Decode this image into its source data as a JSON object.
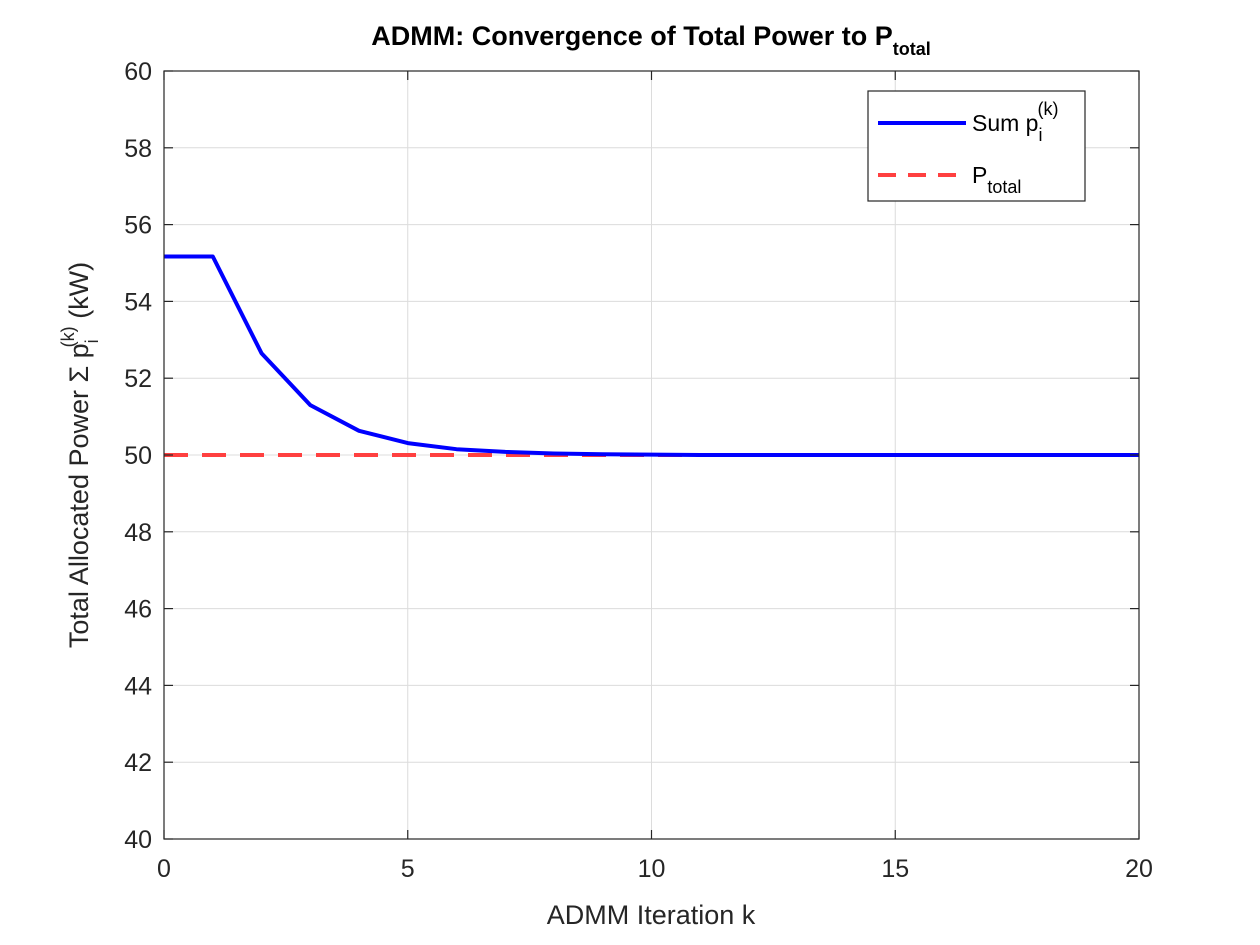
{
  "chart_data": {
    "type": "line",
    "title": {
      "main": "ADMM: Convergence of Total Power to P",
      "subscript": "total"
    },
    "xlabel": "ADMM Iteration k",
    "ylabel": {
      "before": "Total Allocated Power Σ p",
      "subscript": "i",
      "superscript": "(k)",
      "after": " (kW)"
    },
    "xlim": [
      0,
      20
    ],
    "ylim": [
      40,
      60
    ],
    "xticks": [
      0,
      5,
      10,
      15,
      20
    ],
    "yticks": [
      40,
      42,
      44,
      46,
      48,
      50,
      52,
      54,
      56,
      58,
      60
    ],
    "grid": true,
    "legend_position": "top-right",
    "series": [
      {
        "name": {
          "main": "Sum p",
          "subscript": "i",
          "superscript": "(k)"
        },
        "style": "solid",
        "color": "#0000ff",
        "x": [
          0,
          1,
          2,
          3,
          4,
          5,
          6,
          7,
          8,
          9,
          10,
          11,
          12,
          13,
          14,
          15,
          16,
          17,
          18,
          19,
          20
        ],
        "values": [
          55.17,
          55.17,
          52.65,
          51.3,
          50.63,
          50.31,
          50.15,
          50.08,
          50.04,
          50.02,
          50.01,
          50.0,
          50.0,
          50.0,
          50.0,
          50.0,
          50.0,
          50.0,
          50.0,
          50.0,
          50.0
        ]
      },
      {
        "name": {
          "main": "P",
          "subscript": "total"
        },
        "style": "dashed",
        "color": "#ff4040",
        "x": [
          0,
          20
        ],
        "values": [
          50,
          50
        ]
      }
    ]
  }
}
